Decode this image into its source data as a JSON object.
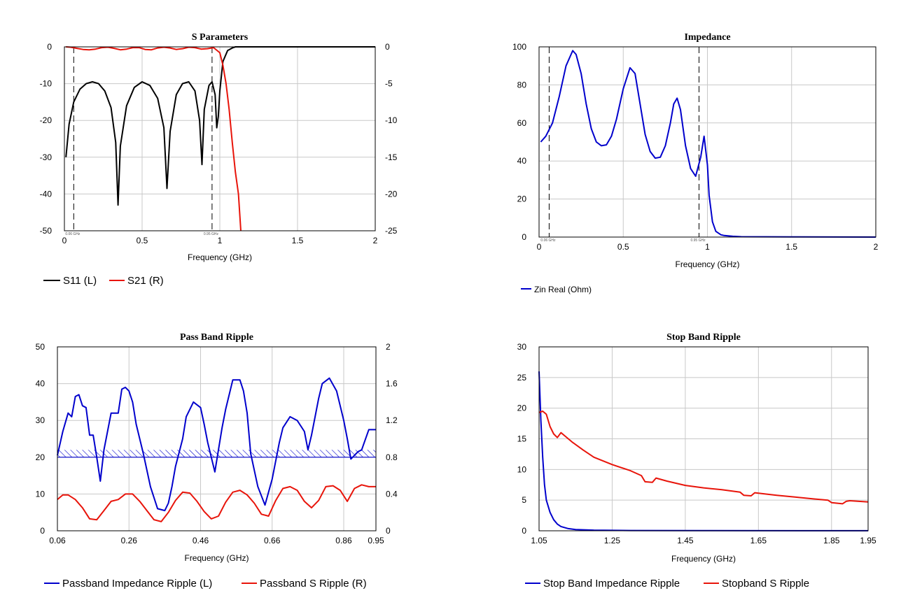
{
  "chart_data": [
    {
      "type": "line",
      "title": "S Parameters",
      "xlabel": "Frequency (GHz)",
      "xlim": [
        0,
        2
      ],
      "xticks": [
        0,
        0.5,
        1,
        1.5,
        2
      ],
      "xtick_labels": [
        "0",
        "0.5",
        "1",
        "1.5",
        "2"
      ],
      "ylim_left": [
        -50,
        0
      ],
      "yticks_left": [
        0,
        -10,
        -20,
        -30,
        -40,
        -50
      ],
      "ytick_labels_left": [
        "0",
        "-10",
        "-20",
        "-30",
        "-40",
        "-50"
      ],
      "ylim_right": [
        -25,
        0
      ],
      "yticks_right": [
        0,
        -5,
        -10,
        -15,
        -20,
        -25
      ],
      "ytick_labels_right": [
        "0",
        "-5",
        "-10",
        "-15",
        "-20",
        "-25"
      ],
      "grid": true,
      "legend_position": "bottom-left",
      "markers": [
        {
          "x": 0.06,
          "label": "0.06 GHz"
        },
        {
          "x": 0.95,
          "label": "0.95 GHz"
        }
      ],
      "series": [
        {
          "name": "S11 (L)",
          "axis": "left",
          "color": "#000000",
          "x": [
            0.01,
            0.03,
            0.06,
            0.1,
            0.14,
            0.18,
            0.22,
            0.26,
            0.3,
            0.33,
            0.345,
            0.36,
            0.4,
            0.45,
            0.5,
            0.55,
            0.6,
            0.64,
            0.66,
            0.68,
            0.72,
            0.76,
            0.8,
            0.84,
            0.87,
            0.885,
            0.9,
            0.93,
            0.95,
            0.97,
            0.98,
            0.99,
            1.0,
            1.02,
            1.05,
            1.08,
            1.1,
            1.2,
            1.5,
            2.0
          ],
          "values": [
            -30,
            -21,
            -15,
            -11.5,
            -10,
            -9.5,
            -10,
            -12,
            -16.5,
            -26,
            -43,
            -27,
            -16,
            -11,
            -9.5,
            -10.5,
            -14,
            -22,
            -38.5,
            -23,
            -13,
            -10,
            -9.5,
            -12,
            -20,
            -32,
            -17,
            -10.5,
            -9.5,
            -13,
            -22,
            -19,
            -12,
            -4,
            -1,
            -0.3,
            0,
            0,
            0,
            0
          ]
        },
        {
          "name": "S21 (R)",
          "axis": "right",
          "color": "#e8140a",
          "x": [
            0.01,
            0.04,
            0.08,
            0.12,
            0.16,
            0.2,
            0.24,
            0.28,
            0.32,
            0.36,
            0.4,
            0.44,
            0.48,
            0.52,
            0.56,
            0.6,
            0.64,
            0.68,
            0.72,
            0.76,
            0.8,
            0.84,
            0.88,
            0.92,
            0.96,
            1.0,
            1.02,
            1.04,
            1.06,
            1.08,
            1.1,
            1.12,
            1.135
          ],
          "values": [
            0,
            -0.05,
            -0.2,
            -0.35,
            -0.4,
            -0.3,
            -0.1,
            -0.05,
            -0.2,
            -0.4,
            -0.3,
            -0.1,
            -0.1,
            -0.35,
            -0.4,
            -0.15,
            -0.05,
            -0.15,
            -0.35,
            -0.25,
            -0.05,
            -0.1,
            -0.3,
            -0.25,
            -0.1,
            -0.8,
            -2.5,
            -5,
            -8.5,
            -13,
            -17,
            -20,
            -25
          ]
        }
      ]
    },
    {
      "type": "line",
      "title": "Impedance",
      "xlabel": "Frequency (GHz)",
      "xlim": [
        0,
        2
      ],
      "xticks": [
        0,
        0.5,
        1,
        1.5,
        2
      ],
      "xtick_labels": [
        "0",
        "0.5",
        "1",
        "1.5",
        "2"
      ],
      "ylim": [
        0,
        100
      ],
      "yticks": [
        100,
        80,
        60,
        40,
        20,
        0
      ],
      "ytick_labels": [
        "100",
        "80",
        "60",
        "40",
        "20",
        "0"
      ],
      "grid": true,
      "legend_position": "bottom-left",
      "markers": [
        {
          "x": 0.06,
          "label": "0.06 GHz"
        },
        {
          "x": 0.95,
          "label": "0.95 GHz"
        }
      ],
      "series": [
        {
          "name": "Zin Real (Ohm)",
          "color": "#0000cc",
          "x": [
            0.01,
            0.04,
            0.08,
            0.12,
            0.16,
            0.2,
            0.22,
            0.25,
            0.28,
            0.31,
            0.34,
            0.37,
            0.4,
            0.43,
            0.46,
            0.5,
            0.54,
            0.57,
            0.6,
            0.63,
            0.66,
            0.69,
            0.72,
            0.75,
            0.78,
            0.8,
            0.82,
            0.84,
            0.87,
            0.9,
            0.93,
            0.96,
            0.98,
            1.0,
            1.01,
            1.03,
            1.05,
            1.08,
            1.1,
            1.15,
            1.2,
            1.5,
            2.0
          ],
          "values": [
            50,
            53,
            60,
            74,
            90,
            98,
            96,
            86,
            70,
            57,
            50,
            48,
            48.5,
            53,
            62,
            78,
            89,
            86,
            70,
            54,
            45,
            41.5,
            42,
            48,
            60,
            70,
            73,
            67,
            48,
            36,
            32,
            42,
            53,
            38,
            22,
            8,
            3,
            1.2,
            0.8,
            0.4,
            0.2,
            0.1,
            0
          ]
        }
      ]
    },
    {
      "type": "line",
      "title": "Pass Band Ripple",
      "xlabel": "Frequency (GHz)",
      "xlim": [
        0.06,
        0.95
      ],
      "xticks": [
        0.06,
        0.26,
        0.46,
        0.66,
        0.86,
        0.95
      ],
      "xtick_labels": [
        "0.06",
        "0.26",
        "0.46",
        "0.66",
        "0.86",
        "0.95"
      ],
      "ylim_left": [
        0,
        50
      ],
      "yticks_left": [
        50,
        40,
        30,
        20,
        10,
        0
      ],
      "ytick_labels_left": [
        "50",
        "40",
        "30",
        "20",
        "10",
        "0"
      ],
      "ylim_right": [
        0,
        2
      ],
      "yticks_right": [
        2,
        1.6,
        1.2,
        0.8,
        0.4,
        0
      ],
      "ytick_labels_right": [
        "2",
        "1.6",
        "1.2",
        "0.8",
        "0.4",
        "0"
      ],
      "grid": true,
      "legend_position": "bottom-left",
      "limit_band": {
        "axis": "left",
        "from": 20,
        "to": 22
      },
      "series": [
        {
          "name": "Passband Impedance Ripple (L)",
          "axis": "left",
          "color": "#0000cc",
          "x": [
            0.06,
            0.075,
            0.09,
            0.1,
            0.11,
            0.12,
            0.13,
            0.14,
            0.15,
            0.16,
            0.17,
            0.18,
            0.19,
            0.21,
            0.23,
            0.24,
            0.25,
            0.26,
            0.27,
            0.28,
            0.3,
            0.32,
            0.34,
            0.36,
            0.37,
            0.38,
            0.39,
            0.41,
            0.42,
            0.44,
            0.46,
            0.47,
            0.48,
            0.5,
            0.52,
            0.53,
            0.55,
            0.57,
            0.58,
            0.59,
            0.6,
            0.62,
            0.64,
            0.66,
            0.68,
            0.69,
            0.71,
            0.73,
            0.75,
            0.76,
            0.77,
            0.79,
            0.8,
            0.82,
            0.84,
            0.86,
            0.87,
            0.88,
            0.9,
            0.91,
            0.93,
            0.95
          ],
          "values": [
            20.5,
            27,
            32,
            31,
            36.5,
            37,
            34,
            33.5,
            26,
            26,
            20,
            13.5,
            22,
            32,
            32,
            38.5,
            39,
            38,
            35,
            29,
            21,
            12,
            6,
            5.5,
            7.5,
            12,
            17.5,
            25,
            31,
            35,
            33.5,
            29,
            24,
            16,
            28,
            33,
            41,
            41,
            38,
            32,
            21,
            12,
            7,
            14,
            24,
            28,
            31,
            30,
            27,
            22,
            26,
            36,
            40,
            41.5,
            38,
            30,
            25,
            19.5,
            21.5,
            22,
            27.5,
            27.5
          ]
        },
        {
          "name": "Passband S Ripple (R)",
          "axis": "right",
          "color": "#e8140a",
          "x": [
            0.06,
            0.075,
            0.09,
            0.11,
            0.13,
            0.15,
            0.17,
            0.19,
            0.21,
            0.23,
            0.25,
            0.27,
            0.29,
            0.31,
            0.33,
            0.35,
            0.37,
            0.39,
            0.41,
            0.43,
            0.45,
            0.47,
            0.49,
            0.51,
            0.53,
            0.55,
            0.57,
            0.59,
            0.61,
            0.63,
            0.65,
            0.67,
            0.69,
            0.71,
            0.73,
            0.75,
            0.77,
            0.79,
            0.81,
            0.83,
            0.85,
            0.87,
            0.89,
            0.91,
            0.93,
            0.95
          ],
          "values": [
            0.34,
            0.39,
            0.39,
            0.34,
            0.25,
            0.13,
            0.12,
            0.22,
            0.32,
            0.34,
            0.4,
            0.4,
            0.32,
            0.22,
            0.12,
            0.1,
            0.2,
            0.33,
            0.42,
            0.41,
            0.32,
            0.21,
            0.13,
            0.16,
            0.31,
            0.42,
            0.44,
            0.39,
            0.3,
            0.18,
            0.16,
            0.33,
            0.46,
            0.48,
            0.44,
            0.32,
            0.25,
            0.33,
            0.48,
            0.49,
            0.44,
            0.32,
            0.46,
            0.5,
            0.48,
            0.48
          ]
        }
      ]
    },
    {
      "type": "line",
      "title": "Stop Band Ripple",
      "xlabel": "Frequency (GHz)",
      "xlim": [
        1.05,
        1.95
      ],
      "xticks": [
        1.05,
        1.25,
        1.45,
        1.65,
        1.85,
        1.95
      ],
      "xtick_labels": [
        "1.05",
        "1.25",
        "1.45",
        "1.65",
        "1.85",
        "1.95"
      ],
      "ylim": [
        0,
        30
      ],
      "yticks": [
        30,
        25,
        20,
        15,
        10,
        5,
        0
      ],
      "ytick_labels": [
        "30",
        "25",
        "20",
        "15",
        "10",
        "5",
        "0"
      ],
      "grid": true,
      "legend_position": "bottom-left",
      "series": [
        {
          "name": "Stop Band Impedance Ripple",
          "color": "#0000cc",
          "x": [
            1.05,
            1.055,
            1.06,
            1.065,
            1.07,
            1.08,
            1.09,
            1.1,
            1.11,
            1.13,
            1.15,
            1.2,
            1.3,
            1.5,
            1.95
          ],
          "values": [
            26,
            18,
            12,
            7.5,
            5,
            3,
            1.8,
            1.1,
            0.7,
            0.35,
            0.2,
            0.1,
            0.05,
            0.02,
            0.01
          ]
        },
        {
          "name": "Stopband S Ripple",
          "color": "#e8140a",
          "x": [
            1.05,
            1.06,
            1.07,
            1.08,
            1.09,
            1.1,
            1.11,
            1.12,
            1.14,
            1.17,
            1.2,
            1.25,
            1.3,
            1.33,
            1.34,
            1.36,
            1.37,
            1.4,
            1.45,
            1.5,
            1.55,
            1.6,
            1.61,
            1.63,
            1.64,
            1.7,
            1.75,
            1.8,
            1.84,
            1.85,
            1.88,
            1.89,
            1.9,
            1.95
          ],
          "values": [
            19.3,
            19.5,
            19,
            17,
            15.8,
            15.2,
            16,
            15.5,
            14.5,
            13.2,
            12,
            10.8,
            9.8,
            9,
            8,
            7.9,
            8.6,
            8.1,
            7.4,
            7,
            6.7,
            6.3,
            5.8,
            5.7,
            6.2,
            5.8,
            5.5,
            5.2,
            5,
            4.6,
            4.4,
            4.8,
            4.9,
            4.7
          ]
        }
      ]
    }
  ]
}
